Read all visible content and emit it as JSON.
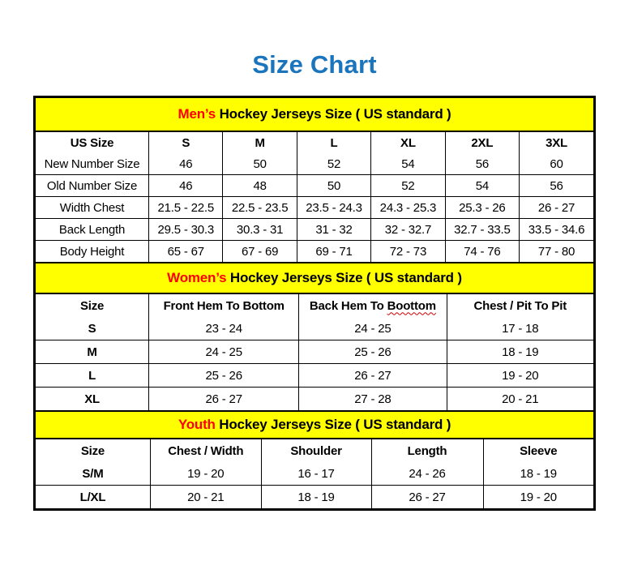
{
  "page": {
    "title": "Size Chart"
  },
  "colors": {
    "title_blue": "#1b75bc",
    "band_yellow": "#ffff00",
    "highlight_red": "#ff0000",
    "squiggle_red": "#cc0000",
    "border_black": "#000000"
  },
  "tables": [
    {
      "name": "mens",
      "band": {
        "highlight": "Men’s",
        "rest": " Hockey Jerseys Size ( US standard )"
      },
      "columns": [
        "US Size",
        "S",
        "M",
        "L",
        "XL",
        "2XL",
        "3XL"
      ],
      "rows": [
        {
          "label": "New Number Size",
          "values": [
            "46",
            "50",
            "52",
            "54",
            "56",
            "60"
          ]
        },
        {
          "label": "Old Number Size",
          "values": [
            "46",
            "48",
            "50",
            "52",
            "54",
            "56"
          ]
        },
        {
          "label": "Width Chest",
          "values": [
            "21.5 - 22.5",
            "22.5 - 23.5",
            "23.5 - 24.3",
            "24.3 - 25.3",
            "25.3 - 26",
            "26 - 27"
          ]
        },
        {
          "label": "Back Length",
          "values": [
            "29.5 - 30.3",
            "30.3 - 31",
            "31 - 32",
            "32 - 32.7",
            "32.7 - 33.5",
            "33.5 - 34.6"
          ]
        },
        {
          "label": "Body Height",
          "values": [
            "65 - 67",
            "67 - 69",
            "69 - 71",
            "72 - 73",
            "74 - 76",
            "77 - 80"
          ]
        }
      ]
    },
    {
      "name": "womens",
      "band": {
        "highlight": "Women’s",
        "rest": " Hockey Jerseys Size ( US standard )"
      },
      "columns": [
        "Size",
        "Front Hem To Bottom",
        "Back Hem To Boottom",
        "Chest / Pit To Pit"
      ],
      "squiggle": {
        "col": 2,
        "word": "Boottom"
      },
      "rows": [
        {
          "label": "S",
          "values": [
            "23 - 24",
            "24 - 25",
            "17 - 18"
          ]
        },
        {
          "label": "M",
          "values": [
            "24 - 25",
            "25 - 26",
            "18 - 19"
          ]
        },
        {
          "label": "L",
          "values": [
            "25 - 26",
            "26 - 27",
            "19 - 20"
          ]
        },
        {
          "label": "XL",
          "values": [
            "26 - 27",
            "27 - 28",
            "20 - 21"
          ]
        }
      ]
    },
    {
      "name": "youth",
      "band": {
        "highlight": "Youth",
        "rest": " Hockey Jerseys Size ( US standard )"
      },
      "columns": [
        "Size",
        "Chest / Width",
        "Shoulder",
        "Length",
        "Sleeve"
      ],
      "rows": [
        {
          "label": "S/M",
          "values": [
            "19 - 20",
            "16 - 17",
            "24 - 26",
            "18 - 19"
          ]
        },
        {
          "label": "L/XL",
          "values": [
            "20 - 21",
            "18 - 19",
            "26 - 27",
            "19 - 20"
          ]
        }
      ]
    }
  ]
}
